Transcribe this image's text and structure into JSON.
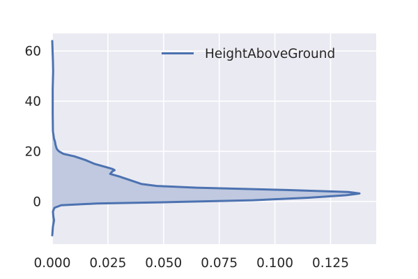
{
  "chart_data": {
    "type": "area",
    "orientation": "horizontal",
    "description_of_axes": "x is density, y is HeightAboveGround",
    "xlim": [
      0,
      0.1455
    ],
    "ylim": [
      -17,
      67
    ],
    "x_ticks": [
      0.0,
      0.025,
      0.05,
      0.075,
      0.1,
      0.125
    ],
    "x_tick_labels": [
      "0.000",
      "0.025",
      "0.050",
      "0.075",
      "0.100",
      "0.125"
    ],
    "y_ticks": [
      0,
      20,
      40,
      60
    ],
    "y_tick_labels": [
      "0",
      "20",
      "40",
      "60"
    ],
    "grid": true,
    "legend_position": "top-right",
    "series": [
      {
        "name": "HeightAboveGround",
        "color": "#4c72b0",
        "fill_color": "#c0c9e0",
        "points": [
          {
            "y": -13.5,
            "x": 0.0
          },
          {
            "y": -10.0,
            "x": 0.0003
          },
          {
            "y": -7.5,
            "x": 0.0008
          },
          {
            "y": -6.0,
            "x": 0.0005
          },
          {
            "y": -4.0,
            "x": 0.0003
          },
          {
            "y": -2.5,
            "x": 0.001
          },
          {
            "y": -1.5,
            "x": 0.004
          },
          {
            "y": -0.8,
            "x": 0.02
          },
          {
            "y": -0.3,
            "x": 0.05
          },
          {
            "y": 0.5,
            "x": 0.09
          },
          {
            "y": 1.5,
            "x": 0.115
          },
          {
            "y": 2.5,
            "x": 0.132
          },
          {
            "y": 3.2,
            "x": 0.138
          },
          {
            "y": 3.8,
            "x": 0.133
          },
          {
            "y": 4.6,
            "x": 0.105
          },
          {
            "y": 5.5,
            "x": 0.065
          },
          {
            "y": 6.2,
            "x": 0.047
          },
          {
            "y": 7.0,
            "x": 0.04
          },
          {
            "y": 8.5,
            "x": 0.035
          },
          {
            "y": 10.0,
            "x": 0.03
          },
          {
            "y": 11.0,
            "x": 0.026
          },
          {
            "y": 12.0,
            "x": 0.027
          },
          {
            "y": 12.5,
            "x": 0.028
          },
          {
            "y": 13.0,
            "x": 0.027
          },
          {
            "y": 13.5,
            "x": 0.025
          },
          {
            "y": 15.0,
            "x": 0.019
          },
          {
            "y": 16.5,
            "x": 0.015
          },
          {
            "y": 18.0,
            "x": 0.01
          },
          {
            "y": 19.0,
            "x": 0.005
          },
          {
            "y": 20.0,
            "x": 0.003
          },
          {
            "y": 21.0,
            "x": 0.002
          },
          {
            "y": 22.5,
            "x": 0.0015
          },
          {
            "y": 24.0,
            "x": 0.0012
          },
          {
            "y": 25.0,
            "x": 0.0008
          },
          {
            "y": 28.0,
            "x": 0.0003
          },
          {
            "y": 35.0,
            "x": 0.0002
          },
          {
            "y": 45.0,
            "x": 0.0002
          },
          {
            "y": 52.0,
            "x": 0.0004
          },
          {
            "y": 56.0,
            "x": 0.0003
          },
          {
            "y": 64.0,
            "x": 0.0
          }
        ]
      }
    ],
    "legend": {
      "label": "HeightAboveGround"
    }
  }
}
